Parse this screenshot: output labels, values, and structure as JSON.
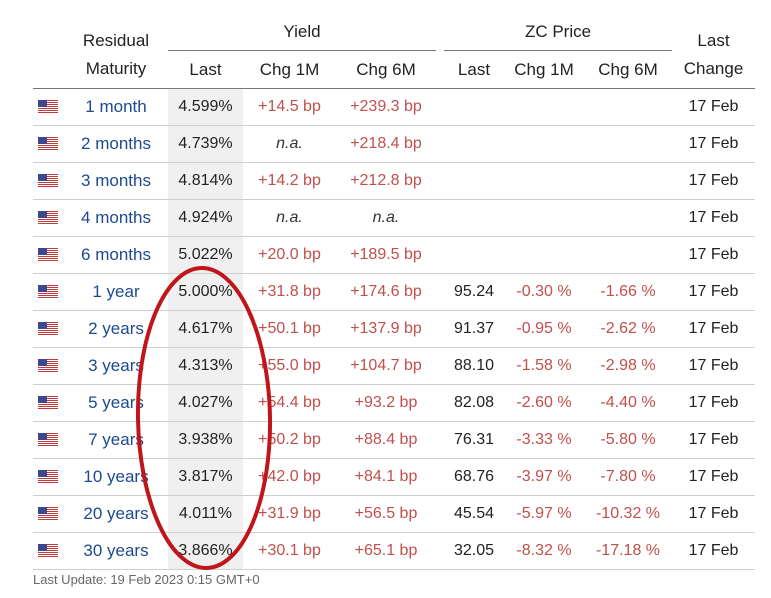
{
  "header": {
    "residual_maturity": "Residual\nMaturity",
    "residual_line1": "Residual",
    "residual_line2": "Maturity",
    "yield_group": "Yield",
    "zc_group": "ZC Price",
    "last_change_line1": "Last",
    "last_change_line2": "Change",
    "yield_cols": [
      "Last",
      "Chg 1M",
      "Chg 6M"
    ],
    "zc_cols": [
      "Last",
      "Chg 1M",
      "Chg 6M"
    ]
  },
  "rows": [
    {
      "maturity": "1 month",
      "yield": "4.599%",
      "chg1m": "+14.5 bp",
      "chg6m": "+239.3 bp",
      "zc": "",
      "zc1m": "",
      "zc6m": "",
      "date": "17 Feb"
    },
    {
      "maturity": "2 months",
      "yield": "4.739%",
      "chg1m": "n.a.",
      "chg6m": "+218.4 bp",
      "zc": "",
      "zc1m": "",
      "zc6m": "",
      "date": "17 Feb"
    },
    {
      "maturity": "3 months",
      "yield": "4.814%",
      "chg1m": "+14.2 bp",
      "chg6m": "+212.8 bp",
      "zc": "",
      "zc1m": "",
      "zc6m": "",
      "date": "17 Feb"
    },
    {
      "maturity": "4 months",
      "yield": "4.924%",
      "chg1m": "n.a.",
      "chg6m": "n.a.",
      "zc": "",
      "zc1m": "",
      "zc6m": "",
      "date": "17 Feb"
    },
    {
      "maturity": "6 months",
      "yield": "5.022%",
      "chg1m": "+20.0 bp",
      "chg6m": "+189.5 bp",
      "zc": "",
      "zc1m": "",
      "zc6m": "",
      "date": "17 Feb"
    },
    {
      "maturity": "1 year",
      "yield": "5.000%",
      "chg1m": "+31.8 bp",
      "chg6m": "+174.6 bp",
      "zc": "95.24",
      "zc1m": "-0.30 %",
      "zc6m": "-1.66 %",
      "date": "17 Feb"
    },
    {
      "maturity": "2 years",
      "yield": "4.617%",
      "chg1m": "+50.1 bp",
      "chg6m": "+137.9 bp",
      "zc": "91.37",
      "zc1m": "-0.95 %",
      "zc6m": "-2.62 %",
      "date": "17 Feb"
    },
    {
      "maturity": "3 years",
      "yield": "4.313%",
      "chg1m": "+55.0 bp",
      "chg6m": "+104.7 bp",
      "zc": "88.10",
      "zc1m": "-1.58 %",
      "zc6m": "-2.98 %",
      "date": "17 Feb"
    },
    {
      "maturity": "5 years",
      "yield": "4.027%",
      "chg1m": "+54.4 bp",
      "chg6m": "+93.2 bp",
      "zc": "82.08",
      "zc1m": "-2.60 %",
      "zc6m": "-4.40 %",
      "date": "17 Feb"
    },
    {
      "maturity": "7 years",
      "yield": "3.938%",
      "chg1m": "+50.2 bp",
      "chg6m": "+88.4 bp",
      "zc": "76.31",
      "zc1m": "-3.33 %",
      "zc6m": "-5.80 %",
      "date": "17 Feb"
    },
    {
      "maturity": "10 years",
      "yield": "3.817%",
      "chg1m": "+42.0 bp",
      "chg6m": "+84.1 bp",
      "zc": "68.76",
      "zc1m": "-3.97 %",
      "zc6m": "-7.80 %",
      "date": "17 Feb"
    },
    {
      "maturity": "20 years",
      "yield": "4.011%",
      "chg1m": "+31.9 bp",
      "chg6m": "+56.5 bp",
      "zc": "45.54",
      "zc1m": "-5.97 %",
      "zc6m": "-10.32 %",
      "date": "17 Feb"
    },
    {
      "maturity": "30 years",
      "yield": "3.866%",
      "chg1m": "+30.1 bp",
      "chg6m": "+65.1 bp",
      "zc": "32.05",
      "zc1m": "-8.32 %",
      "zc6m": "-17.18 %",
      "date": "17 Feb"
    }
  ],
  "footer": "Last Update: 19 Feb 2023 0:15 GMT+0",
  "flag_icon": "us-flag-icon",
  "colors": {
    "link": "#1d4a8f",
    "change": "#c0504d",
    "annotation": "#c0161b",
    "yield_bg": "#f0f0f0"
  }
}
